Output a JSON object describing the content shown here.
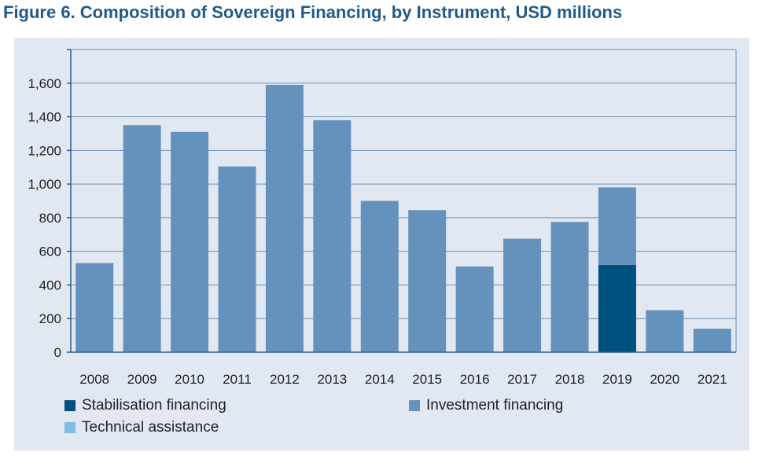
{
  "title": "Figure 6. Composition of Sovereign Financing, by Instrument, USD millions",
  "colors": {
    "stabilisation": "#00507f",
    "investment": "#6592bc",
    "technical": "#7fbde2",
    "axis": "#2a5d8c",
    "grid": "#6f8fb3"
  },
  "chart_data": {
    "type": "bar",
    "stacked": true,
    "title": "Figure 6. Composition of Sovereign Financing, by Instrument, USD millions",
    "xlabel": "",
    "ylabel": "",
    "ylim": [
      0,
      1800
    ],
    "yticks": [
      0,
      200,
      400,
      600,
      800,
      1000,
      1200,
      1400,
      1600
    ],
    "ytick_labels": [
      "0",
      "200",
      "400",
      "600",
      "800",
      "1,000",
      "1,200",
      "1,400",
      "1,600"
    ],
    "grid": true,
    "legend_position": "bottom",
    "categories": [
      "2008",
      "2009",
      "2010",
      "2011",
      "2012",
      "2013",
      "2014",
      "2015",
      "2016",
      "2017",
      "2018",
      "2019",
      "2020",
      "2021"
    ],
    "series": [
      {
        "name": "Stabilisation financing",
        "color": "#00507f",
        "values": [
          0,
          0,
          0,
          0,
          0,
          0,
          0,
          0,
          0,
          0,
          0,
          520,
          0,
          0
        ]
      },
      {
        "name": "Investment financing",
        "color": "#6592bc",
        "values": [
          530,
          1350,
          1310,
          1105,
          1590,
          1380,
          900,
          845,
          510,
          675,
          775,
          460,
          250,
          140
        ]
      },
      {
        "name": "Technical assistance",
        "color": "#7fbde2",
        "values": [
          0,
          0,
          0,
          0,
          0,
          0,
          0,
          0,
          0,
          0,
          0,
          0,
          0,
          0
        ]
      }
    ]
  }
}
